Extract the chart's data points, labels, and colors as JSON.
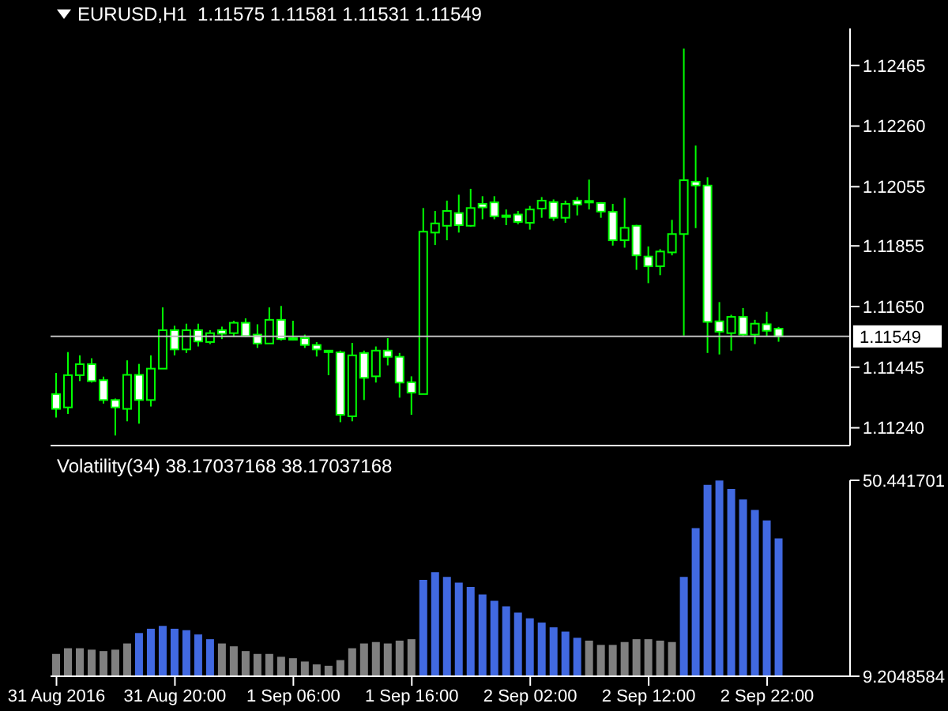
{
  "chart_data": [
    {
      "type": "candlestick",
      "title": "EURUSD,H1  1.11575 1.11581 1.11531 1.11549",
      "color": "#00ff00",
      "x": [
        "2016-08-31T10:00",
        "2016-08-31T11:00",
        "2016-08-31T12:00",
        "2016-08-31T13:00",
        "2016-08-31T14:00",
        "2016-08-31T15:00",
        "2016-08-31T16:00",
        "2016-08-31T17:00",
        "2016-08-31T18:00",
        "2016-08-31T19:00",
        "2016-08-31T20:00",
        "2016-08-31T21:00",
        "2016-08-31T22:00",
        "2016-08-31T23:00",
        "2016-09-01T00:00",
        "2016-09-01T01:00",
        "2016-09-01T02:00",
        "2016-09-01T03:00",
        "2016-09-01T04:00",
        "2016-09-01T05:00",
        "2016-09-01T06:00",
        "2016-09-01T07:00",
        "2016-09-01T08:00",
        "2016-09-01T09:00",
        "2016-09-01T10:00",
        "2016-09-01T11:00",
        "2016-09-01T12:00",
        "2016-09-01T13:00",
        "2016-09-01T14:00",
        "2016-09-01T15:00",
        "2016-09-01T16:00",
        "2016-09-01T17:00",
        "2016-09-01T18:00",
        "2016-09-01T19:00",
        "2016-09-01T20:00",
        "2016-09-01T21:00",
        "2016-09-01T22:00",
        "2016-09-01T23:00",
        "2016-09-02T00:00",
        "2016-09-02T01:00",
        "2016-09-02T02:00",
        "2016-09-02T03:00",
        "2016-09-02T04:00",
        "2016-09-02T05:00",
        "2016-09-02T06:00",
        "2016-09-02T07:00",
        "2016-09-02T08:00",
        "2016-09-02T09:00",
        "2016-09-02T10:00",
        "2016-09-02T11:00",
        "2016-09-02T12:00",
        "2016-09-02T13:00",
        "2016-09-02T14:00",
        "2016-09-02T15:00",
        "2016-09-02T16:00",
        "2016-09-02T17:00",
        "2016-09-02T18:00",
        "2016-09-02T19:00",
        "2016-09-02T20:00",
        "2016-09-02T21:00",
        "2016-09-02T22:00",
        "2016-09-02T23:00"
      ],
      "ohlc": [
        [
          1.11354,
          1.11426,
          1.11275,
          1.11304
        ],
        [
          1.11309,
          1.11496,
          1.11287,
          1.11418
        ],
        [
          1.11418,
          1.11485,
          1.11398,
          1.11455
        ],
        [
          1.11455,
          1.11475,
          1.11393,
          1.11398
        ],
        [
          1.11401,
          1.11413,
          1.11322,
          1.11334
        ],
        [
          1.11334,
          1.11339,
          1.11214,
          1.11309
        ],
        [
          1.11304,
          1.11468,
          1.11262,
          1.11419
        ],
        [
          1.11419,
          1.11456,
          1.11254,
          1.11334
        ],
        [
          1.11334,
          1.11485,
          1.11312,
          1.1144
        ],
        [
          1.1144,
          1.11647,
          1.1144,
          1.1157
        ],
        [
          1.1157,
          1.11585,
          1.11485,
          1.11505
        ],
        [
          1.11505,
          1.11592,
          1.11493,
          1.1157
        ],
        [
          1.1157,
          1.11592,
          1.11515,
          1.11532
        ],
        [
          1.1153,
          1.1157,
          1.11523,
          1.1156
        ],
        [
          1.1157,
          1.11582,
          1.1154,
          1.11558
        ],
        [
          1.1156,
          1.11602,
          1.11547,
          1.11595
        ],
        [
          1.11595,
          1.1161,
          1.11547,
          1.1155
        ],
        [
          1.11555,
          1.1159,
          1.1151,
          1.11525
        ],
        [
          1.11525,
          1.11647,
          1.11525,
          1.11605
        ],
        [
          1.11605,
          1.11652,
          1.11535,
          1.1154
        ],
        [
          1.11543,
          1.11602,
          1.11535,
          1.1154
        ],
        [
          1.11543,
          1.11555,
          1.1151,
          1.1152
        ],
        [
          1.1152,
          1.1153,
          1.11481,
          1.11505
        ],
        [
          1.11501,
          1.11503,
          1.11418,
          1.11496
        ],
        [
          1.11495,
          1.11501,
          1.11259,
          1.11284
        ],
        [
          1.11279,
          1.11527,
          1.11262,
          1.11485
        ],
        [
          1.11493,
          1.11501,
          1.11334,
          1.11409
        ],
        [
          1.11414,
          1.11515,
          1.11393,
          1.11501
        ],
        [
          1.11501,
          1.11543,
          1.11451,
          1.1148
        ],
        [
          1.1148,
          1.11493,
          1.11342,
          1.11393
        ],
        [
          1.11394,
          1.11414,
          1.11284,
          1.11359
        ],
        [
          1.11354,
          1.11983,
          1.11354,
          1.11903
        ],
        [
          1.119,
          1.11973,
          1.11858,
          1.11931
        ],
        [
          1.11923,
          1.12008,
          1.11874,
          1.11973
        ],
        [
          1.11966,
          1.12028,
          1.119,
          1.11925
        ],
        [
          1.11923,
          1.12048,
          1.1192,
          1.11983
        ],
        [
          1.11997,
          1.12023,
          1.11945,
          1.11985
        ],
        [
          1.12002,
          1.12023,
          1.11945,
          1.11955
        ],
        [
          1.11958,
          1.11978,
          1.11925,
          1.11955
        ],
        [
          1.11961,
          1.11973,
          1.11928,
          1.11936
        ],
        [
          1.11933,
          1.1199,
          1.1191,
          1.11978
        ],
        [
          1.11981,
          1.1202,
          1.1195,
          1.12008
        ],
        [
          1.12003,
          1.12012,
          1.1194,
          1.1195
        ],
        [
          1.1195,
          1.12008,
          1.11933,
          1.11997
        ],
        [
          1.12008,
          1.1202,
          1.11958,
          1.11995
        ],
        [
          1.12007,
          1.12079,
          1.11978,
          1.12002
        ],
        [
          1.12,
          1.12003,
          1.1195,
          1.11971
        ],
        [
          1.1197,
          1.11997,
          1.11856,
          1.11874
        ],
        [
          1.11874,
          1.12017,
          1.11849,
          1.11916
        ],
        [
          1.11923,
          1.11926,
          1.11774,
          1.11823
        ],
        [
          1.11819,
          1.11853,
          1.11729,
          1.11786
        ],
        [
          1.11786,
          1.11844,
          1.11756,
          1.11836
        ],
        [
          1.11833,
          1.11943,
          1.11823,
          1.11895
        ],
        [
          1.11895,
          1.12522,
          1.11552,
          1.12077
        ],
        [
          1.12072,
          1.12194,
          1.11915,
          1.12059
        ],
        [
          1.12059,
          1.12087,
          1.11493,
          1.11598
        ],
        [
          1.116,
          1.11665,
          1.11488,
          1.11565
        ],
        [
          1.1156,
          1.11622,
          1.11501,
          1.11615
        ],
        [
          1.11615,
          1.11645,
          1.11548,
          1.11555
        ],
        [
          1.11555,
          1.11605,
          1.11523,
          1.11592
        ],
        [
          1.1159,
          1.11632,
          1.11548,
          1.11568
        ],
        [
          1.11575,
          1.11581,
          1.11531,
          1.11549
        ]
      ],
      "xlim": [
        "2016-08-31T09:30",
        "2016-09-03T05:00"
      ],
      "ylim": [
        1.1118,
        1.1259
      ],
      "yticks": [
        {
          "value": 1.1124,
          "label": "1.11240"
        },
        1.11445,
        {
          "value": 1.1165,
          "label": "1.11650"
        },
        1.11855,
        1.12055,
        {
          "value": 1.1226,
          "label": "1.12260"
        },
        1.12465
      ],
      "ref_lines": [
        {
          "axis": "y",
          "value": 1.11549,
          "label": "1.11549",
          "color": "#c0c0c0"
        }
      ],
      "tick_labels": "y"
    },
    {
      "type": "bar",
      "title": "Volatility(34) 38.17037168 38.17037168",
      "x": [
        "2016-08-31T10:00",
        "2016-08-31T11:00",
        "2016-08-31T12:00",
        "2016-08-31T13:00",
        "2016-08-31T14:00",
        "2016-08-31T15:00",
        "2016-08-31T16:00",
        "2016-08-31T17:00",
        "2016-08-31T18:00",
        "2016-08-31T19:00",
        "2016-08-31T20:00",
        "2016-08-31T21:00",
        "2016-08-31T22:00",
        "2016-08-31T23:00",
        "2016-09-01T00:00",
        "2016-09-01T01:00",
        "2016-09-01T02:00",
        "2016-09-01T03:00",
        "2016-09-01T04:00",
        "2016-09-01T05:00",
        "2016-09-01T06:00",
        "2016-09-01T07:00",
        "2016-09-01T08:00",
        "2016-09-01T09:00",
        "2016-09-01T10:00",
        "2016-09-01T11:00",
        "2016-09-01T12:00",
        "2016-09-01T13:00",
        "2016-09-01T14:00",
        "2016-09-01T15:00",
        "2016-09-01T16:00",
        "2016-09-01T17:00",
        "2016-09-01T18:00",
        "2016-09-01T19:00",
        "2016-09-01T20:00",
        "2016-09-01T21:00",
        "2016-09-01T22:00",
        "2016-09-01T23:00",
        "2016-09-02T00:00",
        "2016-09-02T01:00",
        "2016-09-02T02:00",
        "2016-09-02T03:00",
        "2016-09-02T04:00",
        "2016-09-02T05:00",
        "2016-09-02T06:00",
        "2016-09-02T07:00",
        "2016-09-02T08:00",
        "2016-09-02T09:00",
        "2016-09-02T10:00",
        "2016-09-02T11:00",
        "2016-09-02T12:00",
        "2016-09-02T13:00",
        "2016-09-02T14:00",
        "2016-09-02T15:00",
        "2016-09-02T16:00",
        "2016-09-02T17:00",
        "2016-09-02T18:00",
        "2016-09-02T19:00",
        "2016-09-02T20:00",
        "2016-09-02T21:00",
        "2016-09-02T22:00",
        "2016-09-02T23:00"
      ],
      "values": [
        13.9,
        15.1,
        15.1,
        14.8,
        14.5,
        14.8,
        16.1,
        18.3,
        19.2,
        19.8,
        19.2,
        18.9,
        18.0,
        17.0,
        16.1,
        15.5,
        14.5,
        13.9,
        13.9,
        13.3,
        13.0,
        12.3,
        11.7,
        11.4,
        12.6,
        15.1,
        16.1,
        16.4,
        16.1,
        16.7,
        17.0,
        29.5,
        31.1,
        30.1,
        28.9,
        28.0,
        26.4,
        25.1,
        23.9,
        22.6,
        21.4,
        20.5,
        19.5,
        18.6,
        17.3,
        16.7,
        15.8,
        15.8,
        16.4,
        17.0,
        17.0,
        16.7,
        16.4,
        30.1,
        40.4,
        49.5,
        50.4,
        48.6,
        46.4,
        44.2,
        42.0,
        38.2
      ],
      "colors": [
        "#808080",
        "#808080",
        "#808080",
        "#808080",
        "#808080",
        "#808080",
        "#808080",
        "#4169e1",
        "#4169e1",
        "#4169e1",
        "#4169e1",
        "#4169e1",
        "#4169e1",
        "#4169e1",
        "#808080",
        "#808080",
        "#808080",
        "#808080",
        "#808080",
        "#808080",
        "#808080",
        "#808080",
        "#808080",
        "#808080",
        "#808080",
        "#808080",
        "#808080",
        "#808080",
        "#808080",
        "#808080",
        "#808080",
        "#4169e1",
        "#4169e1",
        "#4169e1",
        "#4169e1",
        "#4169e1",
        "#4169e1",
        "#4169e1",
        "#4169e1",
        "#4169e1",
        "#4169e1",
        "#4169e1",
        "#4169e1",
        "#4169e1",
        "#4169e1",
        "#808080",
        "#808080",
        "#808080",
        "#808080",
        "#808080",
        "#808080",
        "#808080",
        "#808080",
        "#4169e1",
        "#4169e1",
        "#4169e1",
        "#4169e1",
        "#4169e1",
        "#4169e1",
        "#4169e1",
        "#4169e1",
        "#4169e1"
      ],
      "xlim": [
        "2016-08-31T09:30",
        "2016-09-03T05:00"
      ],
      "ylim": [
        9.2048584,
        50.441701
      ],
      "yticks": [
        9.2048584,
        50.441701
      ],
      "xticks": [
        {
          "value": "2016-08-31T10:00",
          "label": "31 Aug 2016"
        },
        {
          "value": "2016-08-31T20:00",
          "label": "31 Aug 20:00"
        },
        {
          "value": "2016-09-01T06:00",
          "label": "1 Sep 06:00"
        },
        {
          "value": "2016-09-01T16:00",
          "label": "1 Sep 16:00"
        },
        {
          "value": "2016-09-02T02:00",
          "label": "2 Sep 02:00"
        },
        {
          "value": "2016-09-02T12:00",
          "label": "2 Sep 12:00"
        },
        {
          "value": "2016-09-02T22:00",
          "label": "2 Sep 22:00"
        }
      ]
    }
  ]
}
